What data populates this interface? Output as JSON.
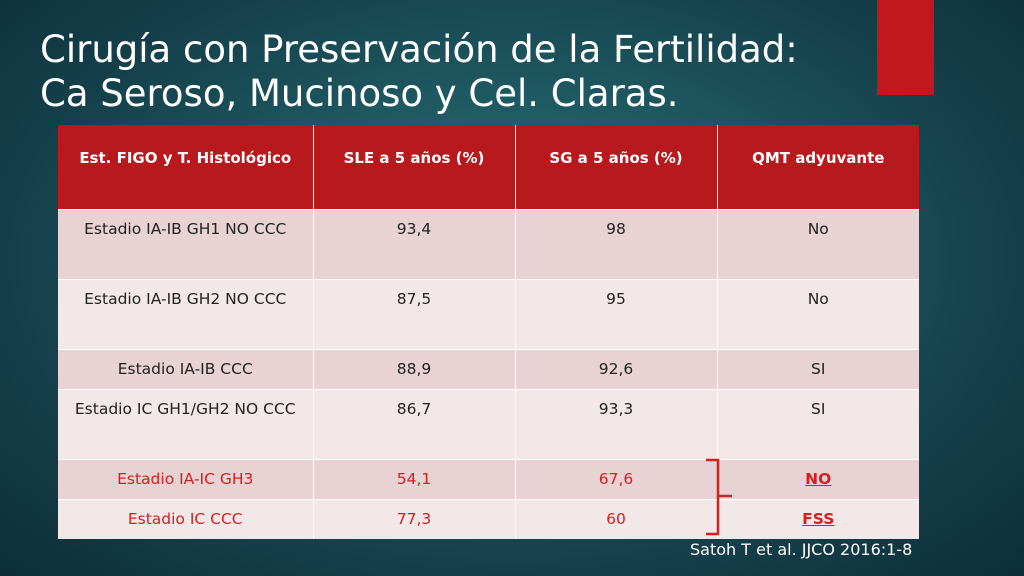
{
  "title": {
    "line1": "Cirugía con Preservación de la Fertilidad:",
    "line2": "Ca Seroso, Mucinoso y Cel. Claras."
  },
  "table": {
    "headers": [
      "Est. FIGO y T. Histológico",
      "SLE a 5 años (%)",
      "SG a 5 años (%)",
      "QMT adyuvante"
    ],
    "rows": [
      [
        "Estadio IA-IB GH1 NO CCC",
        "93,4",
        "98",
        "No"
      ],
      [
        "Estadio IA-IB GH2 NO CCC",
        "87,5",
        "95",
        "No"
      ],
      [
        "Estadio IA-IB CCC",
        "88,9",
        "92,6",
        "SI"
      ],
      [
        "Estadio IC GH1/GH2  NO CCC",
        "86,7",
        "93,3",
        "SI"
      ],
      [
        "Estadio IA-IC GH3",
        "54,1",
        "67,6",
        "NO"
      ],
      [
        "Estadio IC CCC",
        "77,3",
        "60",
        "FSS"
      ]
    ]
  },
  "citation": "Satoh T et al. JJCO 2016:1-8",
  "colors": {
    "accent": "#c0181d",
    "header": "#b7191d",
    "highlight_text": "#d2221f"
  }
}
